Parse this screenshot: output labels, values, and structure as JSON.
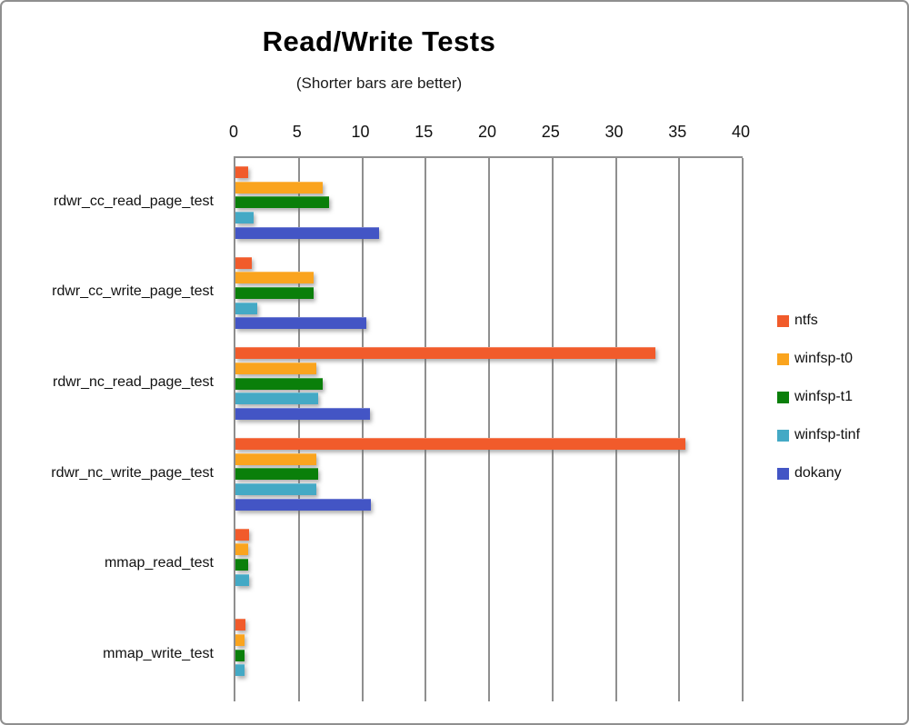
{
  "title": "Read/Write Tests",
  "subtitle": "(Shorter bars are better)",
  "chart_data": {
    "type": "bar",
    "orientation": "horizontal",
    "title": "Read/Write Tests",
    "subtitle": "(Shorter bars are better)",
    "xlabel": "",
    "ylabel": "",
    "xlim": [
      0,
      40
    ],
    "ticks": [
      0,
      5,
      10,
      15,
      20,
      25,
      30,
      35,
      40
    ],
    "grid": true,
    "legend_position": "right",
    "categories": [
      "rdwr_cc_read_page_test",
      "rdwr_cc_write_page_test",
      "rdwr_nc_read_page_test",
      "rdwr_nc_write_page_test",
      "mmap_read_test",
      "mmap_write_test"
    ],
    "series": [
      {
        "name": "ntfs",
        "color": "#F15B2B",
        "values": [
          1.0,
          1.3,
          33.1,
          35.5,
          1.1,
          0.8
        ]
      },
      {
        "name": "winfsp-t0",
        "color": "#FAA41E",
        "values": [
          6.9,
          6.2,
          6.4,
          6.4,
          1.0,
          0.7
        ]
      },
      {
        "name": "winfsp-t1",
        "color": "#0A7F0A",
        "values": [
          7.4,
          6.2,
          6.9,
          6.5,
          1.0,
          0.7
        ]
      },
      {
        "name": "winfsp-tinf",
        "color": "#44A9C5",
        "values": [
          1.4,
          1.7,
          6.5,
          6.4,
          1.1,
          0.7
        ]
      },
      {
        "name": "dokany",
        "color": "#4355C5",
        "values": [
          11.3,
          10.3,
          10.6,
          10.7,
          0,
          0
        ]
      }
    ]
  },
  "frame_border_color": "#8f8f8f"
}
